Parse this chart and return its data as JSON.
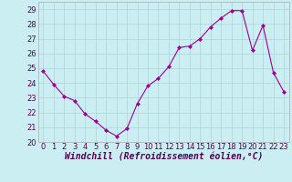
{
  "x": [
    0,
    1,
    2,
    3,
    4,
    5,
    6,
    7,
    8,
    9,
    10,
    11,
    12,
    13,
    14,
    15,
    16,
    17,
    18,
    19,
    20,
    21,
    22,
    23
  ],
  "y": [
    24.8,
    23.9,
    23.1,
    22.8,
    21.9,
    21.4,
    20.8,
    20.4,
    20.9,
    22.6,
    23.8,
    24.3,
    25.1,
    26.4,
    26.5,
    27.0,
    27.8,
    28.4,
    28.9,
    28.9,
    26.2,
    27.9,
    24.7,
    23.4
  ],
  "line_color": "#990099",
  "marker": "D",
  "marker_size": 2,
  "bg_color": "#cbeef3",
  "grid_color": "#aad4d8",
  "xlabel": "Windchill (Refroidissement éolien,°C)",
  "ylim": [
    20,
    29.5
  ],
  "yticks": [
    20,
    21,
    22,
    23,
    24,
    25,
    26,
    27,
    28,
    29
  ],
  "xticks": [
    0,
    1,
    2,
    3,
    4,
    5,
    6,
    7,
    8,
    9,
    10,
    11,
    12,
    13,
    14,
    15,
    16,
    17,
    18,
    19,
    20,
    21,
    22,
    23
  ],
  "xlabel_fontsize": 7,
  "tick_fontsize": 6
}
